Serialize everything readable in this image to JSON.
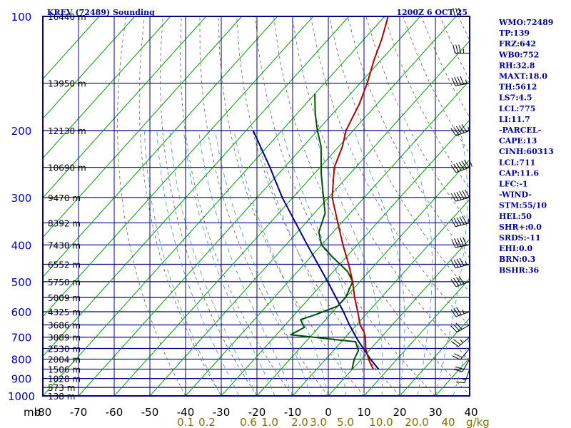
{
  "header": {
    "station": "KREV (72489) Sounding",
    "time": "1200Z  6 OCT 25"
  },
  "chart_data": {
    "type": "skew-t",
    "pressure_ticks": [
      100,
      200,
      300,
      400,
      500,
      600,
      700,
      800,
      900,
      1000
    ],
    "pressure_unit": "mb",
    "height_ticks": [
      {
        "p": 100,
        "label": "16440 m"
      },
      {
        "p": 150,
        "label": "13950 m"
      },
      {
        "p": 200,
        "label": "12130 m"
      },
      {
        "p": 250,
        "label": "10690 m"
      },
      {
        "p": 300,
        "label": "9470 m"
      },
      {
        "p": 350,
        "label": "8392 m"
      },
      {
        "p": 400,
        "label": "7430 m"
      },
      {
        "p": 450,
        "label": "6552 m"
      },
      {
        "p": 500,
        "label": "5750 m"
      },
      {
        "p": 550,
        "label": "5009 m"
      },
      {
        "p": 600,
        "label": "4325 m"
      },
      {
        "p": 650,
        "label": "3686 m"
      },
      {
        "p": 700,
        "label": "3089 m"
      },
      {
        "p": 750,
        "label": "2530 m"
      },
      {
        "p": 800,
        "label": "2004 m"
      },
      {
        "p": 850,
        "label": "1506 m"
      },
      {
        "p": 900,
        "label": "1028 m"
      },
      {
        "p": 950,
        "label": "573 m"
      },
      {
        "p": 1000,
        "label": "138 m"
      }
    ],
    "temperature_ticks": [
      -80,
      -70,
      -60,
      -50,
      -40,
      -30,
      -20,
      -10,
      0,
      10,
      20,
      30,
      40
    ],
    "mixing_ratio_ticks": [
      "0.1",
      "0.2",
      "0.6",
      "1.0",
      "2.0",
      "3.0",
      "5.0",
      "10.0",
      "20.0",
      "40"
    ],
    "mixing_ratio_unit": "g/kg",
    "temperature": [
      {
        "p": 852,
        "t": 6.0
      },
      {
        "p": 820,
        "t": 3.5
      },
      {
        "p": 800,
        "t": 2.0
      },
      {
        "p": 750,
        "t": -1.5
      },
      {
        "p": 700,
        "t": -4.5
      },
      {
        "p": 680,
        "t": -6.0
      },
      {
        "p": 650,
        "t": -9.0
      },
      {
        "p": 600,
        "t": -13.0
      },
      {
        "p": 550,
        "t": -17.5
      },
      {
        "p": 500,
        "t": -22.0
      },
      {
        "p": 450,
        "t": -27.5
      },
      {
        "p": 400,
        "t": -34.0
      },
      {
        "p": 350,
        "t": -41.0
      },
      {
        "p": 300,
        "t": -49.0
      },
      {
        "p": 250,
        "t": -56.0
      },
      {
        "p": 220,
        "t": -59.0
      },
      {
        "p": 200,
        "t": -62.0
      },
      {
        "p": 170,
        "t": -65.0
      },
      {
        "p": 150,
        "t": -68.0
      },
      {
        "p": 130,
        "t": -72.0
      },
      {
        "p": 115,
        "t": -75.0
      },
      {
        "p": 100,
        "t": -79.0
      }
    ],
    "dewpoint": [
      {
        "p": 852,
        "t": 0.0
      },
      {
        "p": 840,
        "t": -0.5
      },
      {
        "p": 800,
        "t": -2.0
      },
      {
        "p": 760,
        "t": -3.0
      },
      {
        "p": 720,
        "t": -6.0
      },
      {
        "p": 690,
        "t": -26.0
      },
      {
        "p": 660,
        "t": -24.0
      },
      {
        "p": 630,
        "t": -27.0
      },
      {
        "p": 610,
        "t": -24.0
      },
      {
        "p": 580,
        "t": -20.0
      },
      {
        "p": 550,
        "t": -20.0
      },
      {
        "p": 500,
        "t": -22.0
      },
      {
        "p": 470,
        "t": -26.0
      },
      {
        "p": 430,
        "t": -34.0
      },
      {
        "p": 400,
        "t": -40.0
      },
      {
        "p": 370,
        "t": -44.0
      },
      {
        "p": 330,
        "t": -47.0
      },
      {
        "p": 290,
        "t": -53.0
      },
      {
        "p": 260,
        "t": -58.0
      },
      {
        "p": 220,
        "t": -65.0
      },
      {
        "p": 200,
        "t": -70.0
      },
      {
        "p": 180,
        "t": -75.0
      },
      {
        "p": 160,
        "t": -80.0
      }
    ],
    "parcel": [
      {
        "p": 852,
        "t": 7.5
      },
      {
        "p": 800,
        "t": 2.5
      },
      {
        "p": 711,
        "t": -6.0
      },
      {
        "p": 650,
        "t": -12.0
      },
      {
        "p": 600,
        "t": -17.0
      },
      {
        "p": 500,
        "t": -29.0
      },
      {
        "p": 400,
        "t": -44.0
      },
      {
        "p": 300,
        "t": -63.0
      },
      {
        "p": 250,
        "t": -74.0
      },
      {
        "p": 200,
        "t": -88.0
      }
    ],
    "wind_barbs": [
      {
        "p": 850,
        "dir": 200,
        "spd": 15
      },
      {
        "p": 800,
        "dir": 210,
        "spd": 20
      },
      {
        "p": 750,
        "dir": 220,
        "spd": 20
      },
      {
        "p": 700,
        "dir": 230,
        "spd": 25
      },
      {
        "p": 650,
        "dir": 240,
        "spd": 30
      },
      {
        "p": 600,
        "dir": 250,
        "spd": 35
      },
      {
        "p": 500,
        "dir": 250,
        "spd": 40
      },
      {
        "p": 450,
        "dir": 255,
        "spd": 45
      },
      {
        "p": 400,
        "dir": 260,
        "spd": 50
      },
      {
        "p": 350,
        "dir": 255,
        "spd": 55
      },
      {
        "p": 300,
        "dir": 255,
        "spd": 60
      },
      {
        "p": 250,
        "dir": 250,
        "spd": 65
      },
      {
        "p": 200,
        "dir": 250,
        "spd": 55
      },
      {
        "p": 150,
        "dir": 260,
        "spd": 45
      },
      {
        "p": 125,
        "dir": 270,
        "spd": 35
      },
      {
        "p": 100,
        "dir": 270,
        "spd": 30
      }
    ],
    "colors": {
      "frame": "#00008b",
      "temperature": "#b30000",
      "dewpoint": "#005000",
      "parcel": "#00008b",
      "isotherm": "#00a000",
      "dry_adiabat": "#606060",
      "moist_adiabat": "#3a8fd0",
      "mixing_ratio_label": "#8a6d00"
    }
  },
  "indices": [
    "WMO:72489",
    "TP:139",
    "FRZ:642",
    "WB0:752",
    "RH:32.8",
    "MAXT:18.0",
    "TH:5612",
    "LS7:4.5",
    "LCL:775",
    "LI:11.7",
    "-PARCEL-",
    "CAPE:13",
    "CINH:60313",
    "LCL:711",
    "CAP:11.6",
    "LFC:-1",
    "-WIND-",
    "STM:55/10",
    "HEL:50",
    "SHR+:0.0",
    "SRDS:-11",
    "EHI:0.0",
    "BRN:0.3",
    "BSHR:36"
  ]
}
